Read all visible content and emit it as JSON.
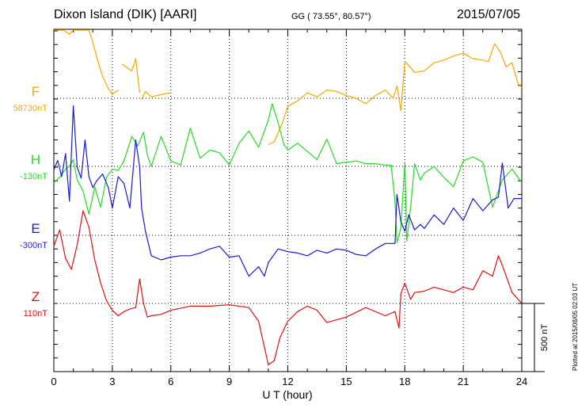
{
  "header": {
    "station": "Dixon Island (DIK)  [AARI]",
    "coords": "GG ( 73.55°,  80.57°)",
    "date": "2015/07/05"
  },
  "credit": "Plotted at 2015/08/05 02:03 UT",
  "chart_data": {
    "type": "line",
    "title": "Dixon Island (DIK)  [AARI]",
    "xlabel": "U T (hour)",
    "xlim": [
      0,
      24
    ],
    "x_ticks": [
      "0",
      "3",
      "6",
      "9",
      "12",
      "15",
      "18",
      "21",
      "24"
    ],
    "scale_bar": {
      "label": "500 nT",
      "value_nT": 500
    },
    "y_units_note": "each trace drawn relative to its baseline; 1 minor division = 100 nT",
    "series": [
      {
        "name": "F",
        "baseline": "58730nT",
        "color": "#f5a800",
        "gaps": [
          [
            3.3,
            3.5
          ],
          [
            4.4,
            4.5
          ],
          [
            6.0,
            11.0
          ]
        ],
        "x": [
          0,
          0.3,
          0.5,
          0.8,
          1.0,
          1.3,
          1.6,
          1.8,
          2.0,
          2.2,
          2.5,
          2.8,
          3.0,
          3.3,
          3.5,
          3.8,
          4.0,
          4.2,
          4.4,
          4.5,
          4.7,
          5.0,
          5.3,
          5.6,
          6.0,
          11.0,
          11.3,
          11.7,
          12.0,
          12.5,
          13.0,
          13.5,
          14.0,
          14.5,
          15.0,
          15.5,
          16.0,
          16.5,
          17.0,
          17.4,
          17.6,
          17.8,
          18.0,
          18.2,
          18.5,
          19.0,
          19.5,
          20.0,
          20.5,
          21.0,
          21.5,
          22.0,
          22.3,
          22.6,
          22.9,
          23.2,
          23.5,
          23.8,
          24.0
        ],
        "values": [
          600,
          620,
          560,
          470,
          530,
          640,
          690,
          610,
          410,
          300,
          160,
          70,
          30,
          60,
          250,
          220,
          200,
          290,
          40,
          -10,
          50,
          10,
          20,
          30,
          40,
          -340,
          -320,
          -190,
          -60,
          -20,
          40,
          10,
          60,
          50,
          20,
          0,
          -40,
          20,
          60,
          0,
          90,
          -90,
          270,
          240,
          190,
          200,
          260,
          280,
          310,
          330,
          290,
          280,
          270,
          400,
          340,
          230,
          260,
          110,
          80
        ]
      },
      {
        "name": "H",
        "baseline": "-130nT",
        "color": "#22dd22",
        "x": [
          0,
          0.3,
          0.6,
          0.8,
          1.0,
          1.2,
          1.5,
          1.8,
          2.1,
          2.4,
          2.7,
          3.0,
          3.3,
          3.6,
          4.0,
          4.3,
          4.6,
          4.8,
          5.0,
          5.5,
          6.0,
          6.5,
          7.0,
          7.5,
          8.0,
          8.5,
          9.0,
          9.5,
          10.0,
          10.5,
          11.0,
          11.2,
          11.5,
          11.8,
          12.0,
          12.5,
          13.0,
          13.5,
          14.0,
          14.5,
          15.0,
          15.5,
          16.0,
          16.5,
          17.0,
          17.3,
          17.5,
          17.6,
          17.8,
          18.0,
          18.1,
          18.3,
          18.5,
          18.8,
          19.0,
          19.5,
          20.0,
          20.5,
          21.0,
          21.5,
          22.0,
          22.5,
          23.0,
          23.5,
          24.0
        ],
        "values": [
          -120,
          -80,
          -20,
          0,
          50,
          -100,
          -180,
          -350,
          -150,
          -300,
          -80,
          -20,
          -30,
          40,
          220,
          150,
          250,
          80,
          0,
          220,
          40,
          10,
          280,
          60,
          120,
          100,
          10,
          170,
          260,
          140,
          340,
          460,
          320,
          160,
          120,
          170,
          110,
          50,
          200,
          20,
          30,
          40,
          20,
          20,
          10,
          10,
          -260,
          -560,
          -450,
          30,
          -550,
          -300,
          20,
          -100,
          -50,
          0,
          -80,
          -150,
          40,
          70,
          30,
          -300,
          -100,
          -20,
          -120
        ]
      },
      {
        "name": "E",
        "baseline": "-300nT",
        "color": "#1a1acc",
        "x": [
          0,
          0.2,
          0.4,
          0.6,
          0.8,
          1.0,
          1.2,
          1.4,
          1.6,
          1.8,
          2.0,
          2.2,
          2.5,
          2.8,
          3.0,
          3.3,
          3.6,
          3.9,
          4.2,
          4.4,
          4.5,
          4.7,
          5.0,
          5.5,
          6.0,
          6.5,
          7.0,
          7.5,
          8.0,
          8.5,
          9.0,
          9.5,
          10.0,
          10.5,
          10.8,
          11.0,
          11.5,
          12.0,
          12.5,
          13.0,
          13.5,
          14.0,
          14.5,
          15.0,
          15.5,
          16.0,
          16.5,
          17.0,
          17.5,
          17.6,
          17.8,
          18.0,
          18.2,
          18.5,
          18.8,
          19.0,
          19.5,
          20.0,
          20.5,
          21.0,
          21.5,
          22.0,
          22.5,
          22.8,
          23.0,
          23.3,
          23.6,
          24.0
        ],
        "values": [
          480,
          550,
          430,
          600,
          250,
          950,
          500,
          420,
          700,
          430,
          350,
          400,
          450,
          350,
          200,
          430,
          380,
          200,
          700,
          500,
          200,
          30,
          -150,
          -180,
          -160,
          -150,
          -150,
          -130,
          -100,
          -80,
          -160,
          -150,
          -300,
          -230,
          -300,
          -200,
          -100,
          -120,
          -130,
          -150,
          -110,
          -130,
          -100,
          -110,
          -140,
          -150,
          -100,
          -60,
          -60,
          300,
          100,
          30,
          150,
          40,
          80,
          50,
          150,
          80,
          200,
          110,
          270,
          180,
          260,
          280,
          530,
          200,
          270,
          270
        ]
      },
      {
        "name": "Z",
        "baseline": "110nT",
        "color": "#dd1111",
        "x": [
          0,
          0.3,
          0.6,
          0.9,
          1.2,
          1.5,
          1.8,
          2.1,
          2.4,
          2.7,
          3.0,
          3.3,
          3.6,
          3.9,
          4.2,
          4.4,
          4.6,
          4.8,
          5.0,
          5.5,
          6.0,
          7.0,
          8.0,
          9.0,
          10.0,
          10.5,
          11.0,
          11.3,
          11.6,
          12.0,
          12.5,
          13.0,
          13.5,
          14.0,
          15.0,
          16.0,
          17.0,
          17.5,
          17.7,
          17.8,
          18.0,
          18.3,
          18.5,
          19.0,
          19.5,
          20.0,
          20.5,
          21.0,
          21.5,
          22.0,
          22.5,
          22.8,
          23.0,
          23.5,
          24.0
        ],
        "values": [
          420,
          540,
          330,
          250,
          430,
          680,
          560,
          320,
          150,
          20,
          -50,
          -90,
          -60,
          -40,
          -30,
          180,
          0,
          -100,
          -90,
          -80,
          -50,
          -20,
          -20,
          -10,
          -30,
          -130,
          -450,
          -420,
          -250,
          -130,
          -60,
          -20,
          -50,
          -140,
          -100,
          -30,
          -90,
          -60,
          -180,
          70,
          150,
          30,
          80,
          90,
          120,
          100,
          80,
          120,
          100,
          240,
          200,
          350,
          280,
          80,
          0
        ]
      }
    ]
  }
}
